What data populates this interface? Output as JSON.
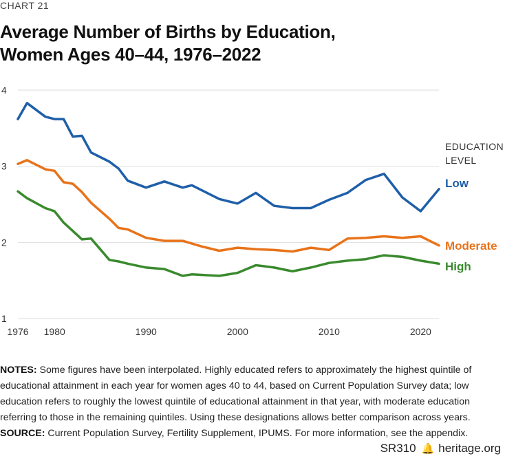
{
  "header": {
    "chart_number": "CHART 21",
    "title_line1": "Average Number of Births by Education,",
    "title_line2": "Women Ages 40–44, 1976–2022"
  },
  "chart_data": {
    "type": "line",
    "title": "Average Number of Births by Education, Women Ages 40–44, 1976–2022",
    "xlabel": "",
    "ylabel": "",
    "xlim": [
      1976,
      2022
    ],
    "ylim": [
      1,
      4
    ],
    "x_ticks": [
      1976,
      1980,
      1990,
      2000,
      2010,
      2020
    ],
    "y_ticks": [
      1,
      2,
      3,
      4
    ],
    "grid": true,
    "legend_title": "EDUCATION LEVEL",
    "legend_title_lines": [
      "EDUCATION",
      "LEVEL"
    ],
    "legend_placement": "right, inline end labels",
    "series": [
      {
        "name": "Low",
        "color": "#1f5fa8",
        "x": [
          1976,
          1977,
          1979,
          1980,
          1981,
          1982,
          1983,
          1984,
          1986,
          1987,
          1988,
          1990,
          1992,
          1994,
          1995,
          1998,
          2000,
          2002,
          2004,
          2006,
          2008,
          2010,
          2012,
          2014,
          2016,
          2018,
          2020,
          2022
        ],
        "values": [
          3.62,
          3.83,
          3.65,
          3.62,
          3.62,
          3.39,
          3.4,
          3.18,
          3.06,
          2.97,
          2.81,
          2.72,
          2.8,
          2.72,
          2.75,
          2.57,
          2.51,
          2.65,
          2.48,
          2.45,
          2.45,
          2.56,
          2.65,
          2.82,
          2.9,
          2.59,
          2.41,
          2.7
        ]
      },
      {
        "name": "Moderate",
        "color": "#e8731a",
        "x": [
          1976,
          1977,
          1979,
          1980,
          1981,
          1982,
          1983,
          1984,
          1986,
          1987,
          1988,
          1990,
          1992,
          1994,
          1996,
          1998,
          2000,
          2002,
          2004,
          2006,
          2008,
          2010,
          2012,
          2014,
          2016,
          2018,
          2020,
          2022
        ],
        "values": [
          3.03,
          3.08,
          2.96,
          2.94,
          2.79,
          2.77,
          2.66,
          2.52,
          2.31,
          2.19,
          2.17,
          2.06,
          2.02,
          2.02,
          1.95,
          1.89,
          1.93,
          1.91,
          1.9,
          1.88,
          1.93,
          1.9,
          2.05,
          2.06,
          2.08,
          2.06,
          2.08,
          1.96
        ]
      },
      {
        "name": "High",
        "color": "#3a8a2e",
        "x": [
          1976,
          1977,
          1979,
          1980,
          1981,
          1982,
          1983,
          1984,
          1986,
          1987,
          1988,
          1990,
          1992,
          1994,
          1995,
          1998,
          2000,
          2002,
          2004,
          2006,
          2008,
          2010,
          2012,
          2014,
          2016,
          2018,
          2020,
          2022
        ],
        "values": [
          2.67,
          2.58,
          2.45,
          2.41,
          2.26,
          2.15,
          2.04,
          2.05,
          1.77,
          1.75,
          1.72,
          1.67,
          1.65,
          1.56,
          1.58,
          1.56,
          1.6,
          1.7,
          1.67,
          1.62,
          1.67,
          1.73,
          1.76,
          1.78,
          1.83,
          1.81,
          1.76,
          1.72
        ]
      }
    ]
  },
  "notes": {
    "notes_label": "NOTES:",
    "notes_text": " Some figures have been interpolated. Highly educated refers to approximately the highest quintile of educational attainment in each year for women ages 40 to 44, based on Current Population Survey data; low education refers to roughly the lowest quintile of educational attainment in that year, with moderate education referring to those in the remaining quintiles. Using these designations allows better comparison across years.",
    "source_label": "SOURCE:",
    "source_text": " Current Population Survey, Fertility Supplement, IPUMS. For more information, see the appendix."
  },
  "footer": {
    "report_id": "SR310",
    "bell_icon": "🔔",
    "site": "heritage.org"
  }
}
